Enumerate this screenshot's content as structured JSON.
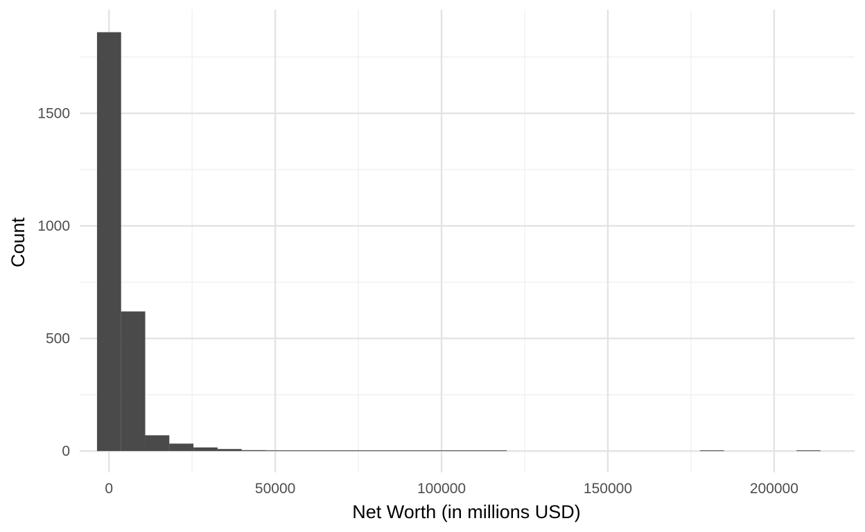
{
  "chart_data": {
    "type": "bar",
    "title": "",
    "xlabel": "Net Worth (in millions USD)",
    "ylabel": "Count",
    "xlim": [
      -8800,
      224200
    ],
    "ylim": [
      -95,
      1960
    ],
    "x_ticks": [
      0,
      50000,
      100000,
      150000,
      200000
    ],
    "x_tick_labels": [
      "0",
      "50000",
      "100000",
      "150000",
      "200000"
    ],
    "y_ticks": [
      0,
      500,
      1000,
      1500
    ],
    "y_tick_labels": [
      "0",
      "500",
      "1000",
      "1500"
    ],
    "grid": true,
    "legend": "none",
    "bar_color": "#4a4a4a",
    "bins": [
      {
        "x0": -3600,
        "x1": 3650,
        "count": 1860
      },
      {
        "x0": 3650,
        "x1": 10900,
        "count": 620
      },
      {
        "x0": 10900,
        "x1": 18150,
        "count": 70
      },
      {
        "x0": 18150,
        "x1": 25400,
        "count": 33
      },
      {
        "x0": 25400,
        "x1": 32650,
        "count": 16
      },
      {
        "x0": 32650,
        "x1": 39900,
        "count": 9
      },
      {
        "x0": 39900,
        "x1": 47150,
        "count": 4
      },
      {
        "x0": 47150,
        "x1": 54400,
        "count": 2
      },
      {
        "x0": 54400,
        "x1": 61650,
        "count": 3
      },
      {
        "x0": 61650,
        "x1": 68900,
        "count": 1
      },
      {
        "x0": 68900,
        "x1": 76150,
        "count": 1
      },
      {
        "x0": 76150,
        "x1": 83400,
        "count": 3
      },
      {
        "x0": 83400,
        "x1": 90650,
        "count": 1
      },
      {
        "x0": 90650,
        "x1": 97900,
        "count": 1
      },
      {
        "x0": 97900,
        "x1": 105150,
        "count": 1
      },
      {
        "x0": 105150,
        "x1": 112400,
        "count": 1
      },
      {
        "x0": 112400,
        "x1": 119650,
        "count": 1
      },
      {
        "x0": 177700,
        "x1": 184950,
        "count": 1
      },
      {
        "x0": 206700,
        "x1": 213950,
        "count": 1
      }
    ]
  }
}
